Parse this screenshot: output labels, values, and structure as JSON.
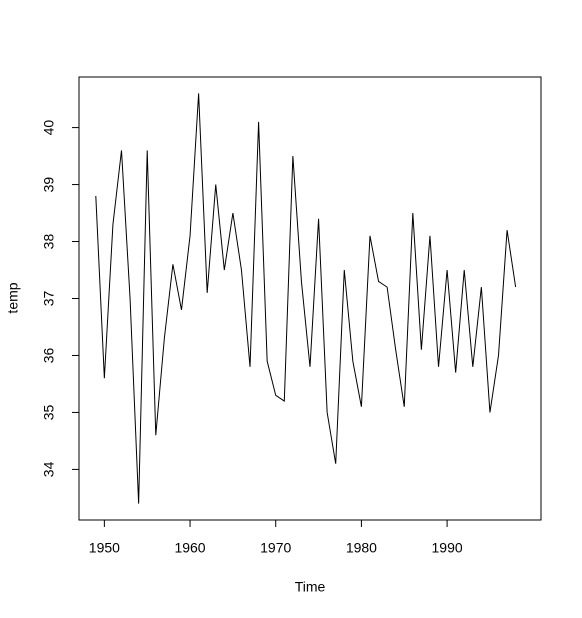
{
  "chart_data": {
    "type": "line",
    "x_label": "Time",
    "y_label": "temp",
    "x": [
      1949,
      1950,
      1951,
      1952,
      1953,
      1954,
      1955,
      1956,
      1957,
      1958,
      1959,
      1960,
      1961,
      1962,
      1963,
      1964,
      1965,
      1966,
      1967,
      1968,
      1969,
      1970,
      1971,
      1972,
      1973,
      1974,
      1975,
      1976,
      1977,
      1978,
      1979,
      1980,
      1981,
      1982,
      1983,
      1984,
      1985,
      1986,
      1987,
      1988,
      1989,
      1990,
      1991,
      1992,
      1993,
      1994,
      1995,
      1996,
      1997,
      1998
    ],
    "values": [
      38.8,
      35.6,
      38.3,
      39.6,
      37.0,
      33.4,
      39.6,
      34.6,
      36.3,
      37.6,
      36.8,
      38.1,
      40.6,
      37.1,
      39.0,
      37.5,
      38.5,
      37.5,
      35.8,
      40.1,
      35.9,
      35.3,
      35.2,
      39.5,
      37.3,
      35.8,
      38.4,
      35.0,
      34.1,
      37.5,
      35.9,
      35.1,
      38.1,
      37.3,
      37.2,
      36.1,
      35.1,
      38.5,
      36.1,
      38.1,
      35.8,
      37.5,
      35.7,
      37.5,
      35.8,
      37.2,
      35.0,
      36.0,
      38.2,
      37.2
    ],
    "color": "#000000",
    "xlim": [
      1947.04,
      2000.96
    ],
    "xticks": [
      1950,
      1960,
      1970,
      1980,
      1990
    ],
    "ylim": [
      33.112,
      40.888
    ],
    "yticks": [
      34,
      35,
      36,
      37,
      38,
      39,
      40
    ]
  }
}
